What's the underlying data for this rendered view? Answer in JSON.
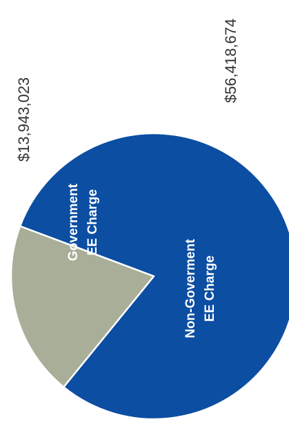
{
  "chart_data": {
    "type": "pie",
    "title": "",
    "slices": [
      {
        "label_line1": "Non-Goverment",
        "label_line2": "EE Charge",
        "value": 56418674,
        "value_label": "$56,418,674",
        "color": "#0b4ea2"
      },
      {
        "label_line1": "Government",
        "label_line2": "EE Charge",
        "value": 13943023,
        "value_label": "$13,943,023",
        "color": "#a9ae98"
      }
    ]
  }
}
